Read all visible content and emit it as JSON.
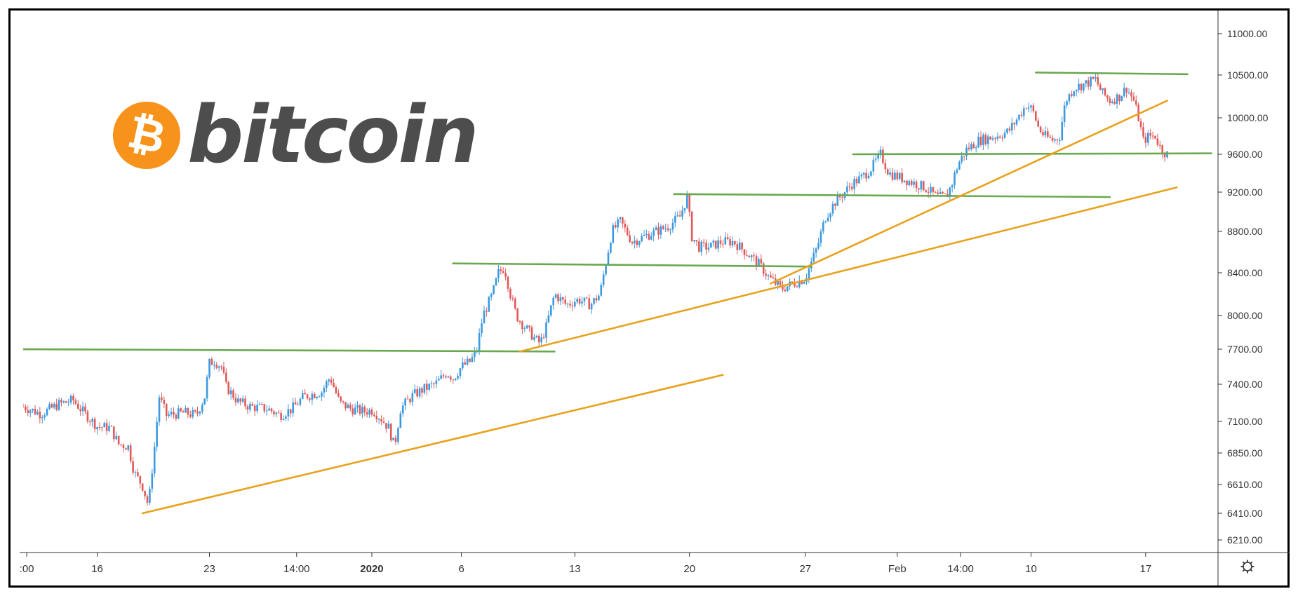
{
  "logo": {
    "coin_symbol": "₿",
    "wordmark": "bitcoin",
    "coin_color": "#f7931a",
    "wordmark_color": "#4d4d4d"
  },
  "colors": {
    "up_candle": "#3b99e0",
    "down_candle": "#e05a5a",
    "support_resistance": "#6aa84f",
    "trendline": "#e8a11b"
  },
  "chart_data": {
    "type": "candlestick",
    "title": "",
    "xlabel": "",
    "ylabel": "",
    "ylim": [
      6100,
      11150
    ],
    "y_ticks": [
      "6210.00",
      "6410.00",
      "6610.00",
      "6850.00",
      "7100.00",
      "7400.00",
      "7700.00",
      "8000.00",
      "8400.00",
      "8800.00",
      "9200.00",
      "9600.00",
      "10000.00",
      "10500.00",
      "11000.00"
    ],
    "x_range": [
      0,
      100
    ],
    "x_ticks": [
      {
        "label": ":00",
        "x": 0.3,
        "bold": false
      },
      {
        "label": "16",
        "x": 6.2,
        "bold": false
      },
      {
        "label": "23",
        "x": 15.6,
        "bold": false
      },
      {
        "label": "14:00",
        "x": 22.9,
        "bold": false
      },
      {
        "label": "2020",
        "x": 29.2,
        "bold": true
      },
      {
        "label": "6",
        "x": 36.7,
        "bold": false
      },
      {
        "label": "13",
        "x": 46.2,
        "bold": false
      },
      {
        "label": "20",
        "x": 55.8,
        "bold": false
      },
      {
        "label": "27",
        "x": 65.5,
        "bold": false
      },
      {
        "label": "Feb",
        "x": 73.2,
        "bold": false
      },
      {
        "label": "14:00",
        "x": 78.5,
        "bold": false
      },
      {
        "label": "10",
        "x": 84.4,
        "bold": false
      },
      {
        "label": "17",
        "x": 94.0,
        "bold": false
      }
    ],
    "settings_icon": "gear-icon",
    "price_path": [
      [
        0,
        7220
      ],
      [
        1.5,
        7160
      ],
      [
        3,
        7240
      ],
      [
        4.2,
        7270
      ],
      [
        5,
        7180
      ],
      [
        6.2,
        7060
      ],
      [
        7.3,
        7050
      ],
      [
        8,
        6920
      ],
      [
        8.8,
        6900
      ],
      [
        9.3,
        6700
      ],
      [
        10,
        6600
      ],
      [
        10.5,
        6460
      ],
      [
        11,
        6900
      ],
      [
        11.4,
        7300
      ],
      [
        12,
        7150
      ],
      [
        13.5,
        7170
      ],
      [
        14.5,
        7150
      ],
      [
        15.2,
        7300
      ],
      [
        15.6,
        7580
      ],
      [
        16,
        7600
      ],
      [
        16.6,
        7550
      ],
      [
        17,
        7380
      ],
      [
        18,
        7260
      ],
      [
        19,
        7220
      ],
      [
        20.5,
        7200
      ],
      [
        21.5,
        7150
      ],
      [
        22.5,
        7200
      ],
      [
        23.5,
        7300
      ],
      [
        25,
        7340
      ],
      [
        25.7,
        7460
      ],
      [
        26.5,
        7250
      ],
      [
        27.5,
        7200
      ],
      [
        28.5,
        7180
      ],
      [
        29.3,
        7190
      ],
      [
        30,
        7120
      ],
      [
        30.6,
        7050
      ],
      [
        31.1,
        6900
      ],
      [
        31.6,
        7200
      ],
      [
        32.5,
        7300
      ],
      [
        33.5,
        7360
      ],
      [
        34.5,
        7400
      ],
      [
        35.5,
        7500
      ],
      [
        36,
        7450
      ],
      [
        36.7,
        7550
      ],
      [
        37.5,
        7600
      ],
      [
        38,
        7700
      ],
      [
        38.5,
        8000
      ],
      [
        39.3,
        8200
      ],
      [
        39.8,
        8400
      ],
      [
        40.3,
        8450
      ],
      [
        40.8,
        8200
      ],
      [
        41.3,
        8000
      ],
      [
        42,
        7900
      ],
      [
        42.8,
        7800
      ],
      [
        43.3,
        7750
      ],
      [
        43.8,
        7900
      ],
      [
        44.5,
        8200
      ],
      [
        45.5,
        8100
      ],
      [
        46.5,
        8150
      ],
      [
        47.5,
        8100
      ],
      [
        48.3,
        8200
      ],
      [
        48.8,
        8500
      ],
      [
        49.3,
        8800
      ],
      [
        50,
        8900
      ],
      [
        51,
        8700
      ],
      [
        52,
        8750
      ],
      [
        53,
        8800
      ],
      [
        54,
        8850
      ],
      [
        55,
        8950
      ],
      [
        55.6,
        9150
      ],
      [
        56,
        8750
      ],
      [
        56.6,
        8650
      ],
      [
        57.5,
        8650
      ],
      [
        58.5,
        8700
      ],
      [
        59.5,
        8700
      ],
      [
        60.5,
        8600
      ],
      [
        61.5,
        8500
      ],
      [
        62.5,
        8350
      ],
      [
        63.5,
        8250
      ],
      [
        64.5,
        8300
      ],
      [
        65.5,
        8350
      ],
      [
        66.5,
        8650
      ],
      [
        67.2,
        8950
      ],
      [
        68,
        9100
      ],
      [
        68.8,
        9200
      ],
      [
        69.5,
        9300
      ],
      [
        70.2,
        9350
      ],
      [
        71,
        9450
      ],
      [
        71.8,
        9600
      ],
      [
        72.5,
        9400
      ],
      [
        73.5,
        9350
      ],
      [
        74.5,
        9300
      ],
      [
        75.5,
        9250
      ],
      [
        76.5,
        9150
      ],
      [
        77.3,
        9150
      ],
      [
        77.8,
        9300
      ],
      [
        78.3,
        9500
      ],
      [
        79,
        9650
      ],
      [
        80,
        9750
      ],
      [
        81.5,
        9800
      ],
      [
        82.5,
        9850
      ],
      [
        83.3,
        10000
      ],
      [
        84,
        10150
      ],
      [
        84.5,
        10100
      ],
      [
        85,
        9900
      ],
      [
        85.5,
        9800
      ],
      [
        86.3,
        9750
      ],
      [
        86.8,
        9800
      ],
      [
        87.3,
        10200
      ],
      [
        88,
        10350
      ],
      [
        89,
        10400
      ],
      [
        89.8,
        10450
      ],
      [
        90.3,
        10300
      ],
      [
        91,
        10200
      ],
      [
        91.8,
        10250
      ],
      [
        92.4,
        10350
      ],
      [
        93,
        10200
      ],
      [
        93.4,
        10000
      ],
      [
        93.8,
        9750
      ],
      [
        94.3,
        9800
      ],
      [
        94.8,
        9800
      ],
      [
        95.3,
        9650
      ],
      [
        95.8,
        9600
      ]
    ],
    "overlays": [
      {
        "kind": "support_resistance",
        "x1": -0.5,
        "y1": 7700,
        "x2": 44.5,
        "y2": 7680
      },
      {
        "kind": "support_resistance",
        "x1": 36.0,
        "y1": 8490,
        "x2": 66.0,
        "y2": 8460
      },
      {
        "kind": "support_resistance",
        "x1": 54.5,
        "y1": 9180,
        "x2": 91.0,
        "y2": 9150
      },
      {
        "kind": "support_resistance",
        "x1": 69.5,
        "y1": 9600,
        "x2": 99.5,
        "y2": 9610
      },
      {
        "kind": "support_resistance",
        "x1": 84.8,
        "y1": 10530,
        "x2": 97.5,
        "y2": 10510
      },
      {
        "kind": "trendline",
        "x1": 10.0,
        "y1": 6410,
        "x2": 58.6,
        "y2": 7480
      },
      {
        "kind": "trendline",
        "x1": 41.6,
        "y1": 7680,
        "x2": 96.6,
        "y2": 9250
      },
      {
        "kind": "trendline",
        "x1": 62.6,
        "y1": 8300,
        "x2": 95.8,
        "y2": 10200
      }
    ]
  }
}
